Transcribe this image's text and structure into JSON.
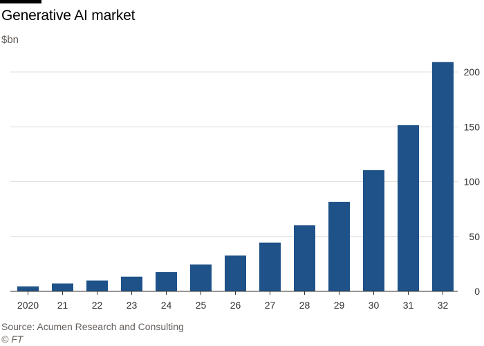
{
  "header": {
    "title": "Generative AI market",
    "unit": "$bn"
  },
  "footer": {
    "source": "Source: Acumen Research and Consulting",
    "credit": "© FT"
  },
  "colors": {
    "bar": "#1e5289",
    "grid": "#e0dcd8",
    "axis": "#33302e"
  },
  "chart_data": {
    "type": "bar",
    "title": "Generative AI market",
    "ylabel": "$bn",
    "xlabel": "",
    "categories": [
      "2020",
      "21",
      "22",
      "23",
      "24",
      "25",
      "26",
      "27",
      "28",
      "29",
      "30",
      "31",
      "32"
    ],
    "values": [
      4.5,
      7.2,
      9.8,
      13.4,
      17.6,
      24.4,
      32.6,
      44.4,
      60.3,
      81.5,
      110.5,
      151.5,
      209.0
    ],
    "ylim": [
      0,
      200
    ],
    "yticks": [
      0,
      50,
      100,
      150,
      200
    ],
    "ytick_labels": [
      "0",
      "50",
      "100",
      "150",
      "200"
    ],
    "y_axis_position": "right",
    "grid": true,
    "legend": "none"
  }
}
